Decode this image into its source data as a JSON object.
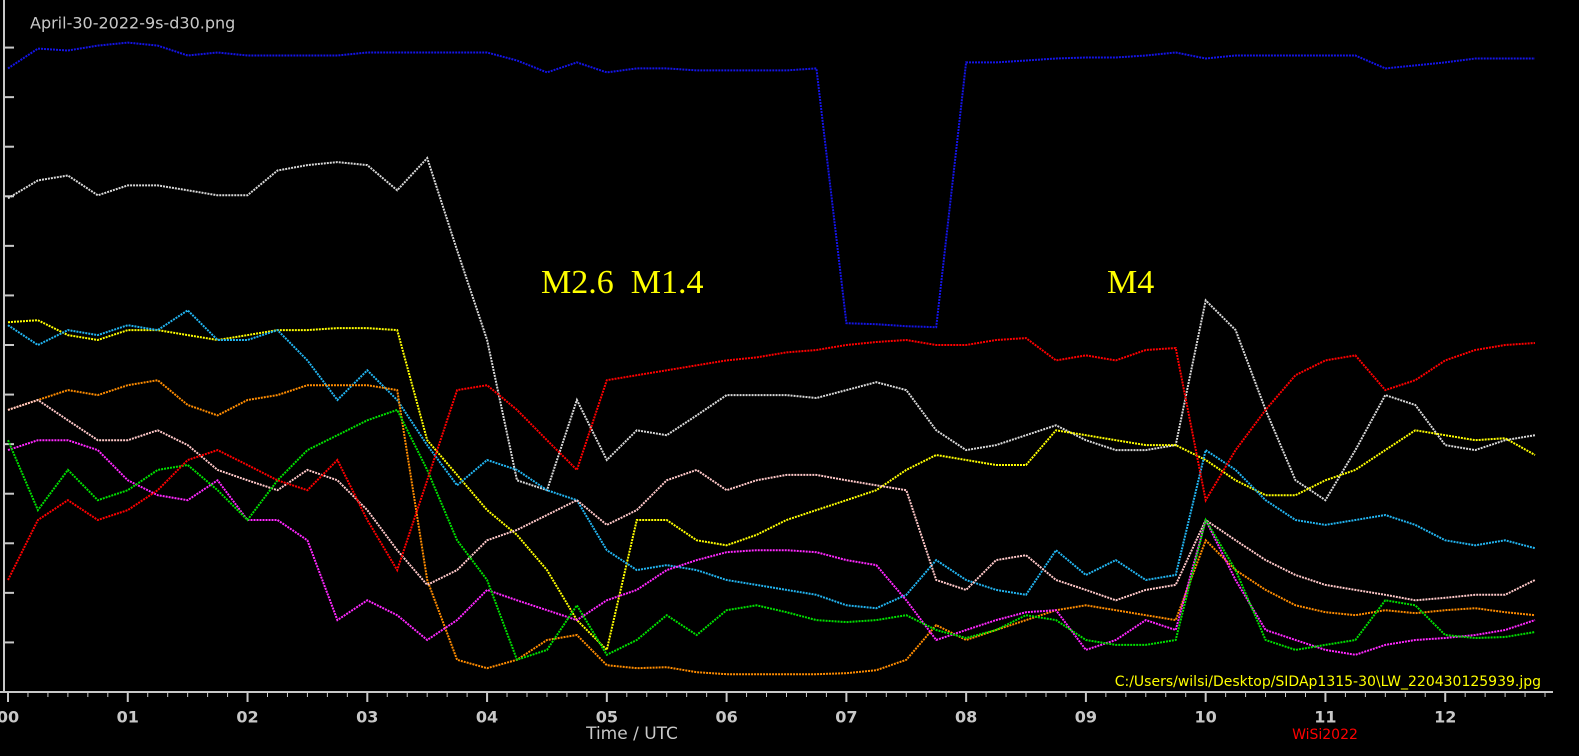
{
  "chart_data": {
    "type": "line",
    "title": "April-30-2022-9s-d30.png",
    "x_label": "Time / UTC",
    "footer_path": "C:/Users/wilsi/Desktop/SIDAp1315-30\\LW_220430125939.jpg",
    "credit": "WiSi2022",
    "annotations": [
      "M2.6  M1.4",
      "M4"
    ],
    "grid": false,
    "xlim": [
      0,
      12.9
    ],
    "ylim": [
      0,
      14
    ],
    "xticks": [
      {
        "value": 0,
        "label": "00"
      },
      {
        "value": 1,
        "label": "01"
      },
      {
        "value": 2,
        "label": "02"
      },
      {
        "value": 3,
        "label": "03"
      },
      {
        "value": 4,
        "label": "04"
      },
      {
        "value": 5,
        "label": "05"
      },
      {
        "value": 6,
        "label": "06"
      },
      {
        "value": 7,
        "label": "07"
      },
      {
        "value": 8,
        "label": "08"
      },
      {
        "value": 9,
        "label": "09"
      },
      {
        "value": 10,
        "label": "10"
      },
      {
        "value": 11,
        "label": "11"
      },
      {
        "value": 12,
        "label": "12"
      }
    ],
    "yticks": [
      1,
      2,
      3,
      4,
      5,
      6,
      7,
      8,
      9,
      10,
      11,
      12,
      13
    ],
    "x": [
      0,
      0.25,
      0.5,
      0.75,
      1,
      1.25,
      1.5,
      1.75,
      2,
      2.25,
      2.5,
      2.75,
      3,
      3.25,
      3.5,
      3.75,
      4,
      4.25,
      4.5,
      4.75,
      5,
      5.25,
      5.5,
      5.75,
      6,
      6.25,
      6.5,
      6.75,
      7,
      7.25,
      7.5,
      7.75,
      8,
      8.25,
      8.5,
      8.75,
      9,
      9.25,
      9.5,
      9.75,
      10,
      10.25,
      10.5,
      10.75,
      11,
      11.25,
      11.5,
      11.75,
      12,
      12.25,
      12.5,
      12.75
    ],
    "series": [
      {
        "color": "#1414e6",
        "values": [
          12.58,
          12.98,
          12.94,
          13.04,
          13.1,
          13.04,
          12.84,
          12.9,
          12.84,
          12.84,
          12.84,
          12.84,
          12.9,
          12.9,
          12.9,
          12.9,
          12.9,
          12.74,
          12.5,
          12.7,
          12.5,
          12.58,
          12.58,
          12.54,
          12.54,
          12.54,
          12.54,
          12.58,
          7.44,
          7.42,
          7.38,
          7.36,
          12.7,
          12.7,
          12.74,
          12.78,
          12.8,
          12.8,
          12.84,
          12.9,
          12.78,
          12.84,
          12.84,
          12.84,
          12.84,
          12.84,
          12.58,
          12.64,
          12.7,
          12.78,
          12.78,
          12.78
        ]
      },
      {
        "color": "#d8d8d8",
        "values": [
          9.96,
          10.32,
          10.42,
          10.02,
          10.22,
          10.22,
          10.12,
          10.02,
          10.02,
          10.52,
          10.63,
          10.69,
          10.63,
          10.12,
          10.77,
          8.91,
          7.1,
          4.27,
          4.07,
          5.89,
          4.68,
          5.28,
          5.18,
          5.58,
          5.99,
          5.99,
          5.99,
          5.93,
          6.09,
          6.25,
          6.09,
          5.28,
          4.88,
          4.98,
          5.18,
          5.38,
          5.08,
          4.88,
          4.88,
          4.98,
          7.9,
          7.3,
          5.69,
          4.27,
          3.87,
          4.88,
          5.99,
          5.79,
          4.98,
          4.88,
          5.08,
          5.18
        ]
      },
      {
        "color": "#ffff00",
        "values": [
          7.46,
          7.5,
          7.2,
          7.1,
          7.3,
          7.3,
          7.2,
          7.1,
          7.2,
          7.3,
          7.3,
          7.34,
          7.34,
          7.3,
          5.08,
          4.38,
          3.67,
          3.17,
          2.46,
          1.45,
          0.85,
          3.47,
          3.47,
          3.06,
          2.96,
          3.17,
          3.47,
          3.67,
          3.87,
          4.07,
          4.48,
          4.78,
          4.68,
          4.58,
          4.58,
          5.28,
          5.18,
          5.08,
          4.98,
          4.98,
          4.68,
          4.27,
          3.97,
          3.97,
          4.27,
          4.48,
          4.88,
          5.28,
          5.18,
          5.08,
          5.12,
          4.78
        ]
      },
      {
        "color": "#22b4f0",
        "values": [
          7.4,
          7.0,
          7.3,
          7.2,
          7.4,
          7.3,
          7.7,
          7.1,
          7.1,
          7.3,
          6.69,
          5.89,
          6.49,
          5.89,
          4.98,
          4.17,
          4.68,
          4.48,
          4.07,
          3.87,
          2.86,
          2.46,
          2.56,
          2.46,
          2.26,
          2.16,
          2.06,
          1.96,
          1.75,
          1.69,
          1.96,
          2.66,
          2.26,
          2.06,
          1.96,
          2.86,
          2.36,
          2.66,
          2.26,
          2.36,
          4.88,
          4.48,
          3.87,
          3.47,
          3.37,
          3.47,
          3.57,
          3.37,
          3.06,
          2.96,
          3.06,
          2.9
        ]
      },
      {
        "color": "#ff8c00",
        "values": [
          5.69,
          5.89,
          6.09,
          5.99,
          6.19,
          6.29,
          5.79,
          5.58,
          5.89,
          5.99,
          6.19,
          6.19,
          6.19,
          6.09,
          2.26,
          0.65,
          0.48,
          0.65,
          1.05,
          1.15,
          0.54,
          0.48,
          0.5,
          0.4,
          0.36,
          0.36,
          0.36,
          0.36,
          0.38,
          0.44,
          0.65,
          1.35,
          1.05,
          1.25,
          1.45,
          1.65,
          1.75,
          1.65,
          1.55,
          1.45,
          3.06,
          2.46,
          2.06,
          1.75,
          1.61,
          1.55,
          1.65,
          1.59,
          1.65,
          1.69,
          1.61,
          1.55
        ]
      },
      {
        "color": "#ffc8c8",
        "values": [
          5.69,
          5.89,
          5.48,
          5.08,
          5.08,
          5.28,
          4.98,
          4.48,
          4.27,
          4.07,
          4.48,
          4.27,
          3.67,
          2.86,
          2.16,
          2.46,
          3.06,
          3.27,
          3.57,
          3.87,
          3.37,
          3.67,
          4.27,
          4.48,
          4.07,
          4.27,
          4.38,
          4.38,
          4.27,
          4.17,
          4.07,
          2.26,
          2.06,
          2.66,
          2.76,
          2.26,
          2.06,
          1.85,
          2.06,
          2.16,
          3.47,
          3.06,
          2.66,
          2.36,
          2.16,
          2.06,
          1.96,
          1.85,
          1.9,
          1.96,
          1.96,
          2.26
        ]
      },
      {
        "color": "#ff28ff",
        "values": [
          4.88,
          5.08,
          5.08,
          4.88,
          4.27,
          3.97,
          3.87,
          4.27,
          3.47,
          3.47,
          3.06,
          1.45,
          1.85,
          1.55,
          1.05,
          1.45,
          2.06,
          1.85,
          1.65,
          1.45,
          1.85,
          2.06,
          2.46,
          2.66,
          2.82,
          2.86,
          2.86,
          2.82,
          2.66,
          2.56,
          1.85,
          1.05,
          1.25,
          1.45,
          1.61,
          1.65,
          0.85,
          1.05,
          1.45,
          1.25,
          3.47,
          2.26,
          1.25,
          1.05,
          0.85,
          0.75,
          0.95,
          1.05,
          1.09,
          1.15,
          1.25,
          1.45
        ]
      },
      {
        "color": "#00e000",
        "values": [
          5.08,
          3.67,
          4.48,
          3.87,
          4.07,
          4.48,
          4.58,
          4.07,
          3.47,
          4.27,
          4.88,
          5.18,
          5.48,
          5.69,
          4.48,
          3.06,
          2.26,
          0.65,
          0.85,
          1.75,
          0.75,
          1.05,
          1.55,
          1.15,
          1.65,
          1.75,
          1.61,
          1.45,
          1.41,
          1.45,
          1.55,
          1.25,
          1.09,
          1.25,
          1.55,
          1.45,
          1.05,
          0.95,
          0.95,
          1.05,
          3.47,
          2.46,
          1.05,
          0.85,
          0.95,
          1.05,
          1.85,
          1.75,
          1.15,
          1.09,
          1.11,
          1.21
        ]
      },
      {
        "color": "#ff0000",
        "values": [
          2.26,
          3.47,
          3.87,
          3.47,
          3.67,
          4.07,
          4.68,
          4.88,
          4.58,
          4.27,
          4.07,
          4.68,
          3.47,
          2.46,
          4.27,
          6.09,
          6.19,
          5.69,
          5.08,
          4.48,
          6.29,
          6.39,
          6.49,
          6.59,
          6.69,
          6.75,
          6.85,
          6.9,
          7.0,
          7.06,
          7.1,
          7.0,
          7.0,
          7.1,
          7.14,
          6.69,
          6.79,
          6.69,
          6.9,
          6.94,
          3.87,
          4.88,
          5.69,
          6.39,
          6.69,
          6.79,
          6.09,
          6.29,
          6.69,
          6.9,
          7.0,
          7.04
        ]
      }
    ]
  }
}
